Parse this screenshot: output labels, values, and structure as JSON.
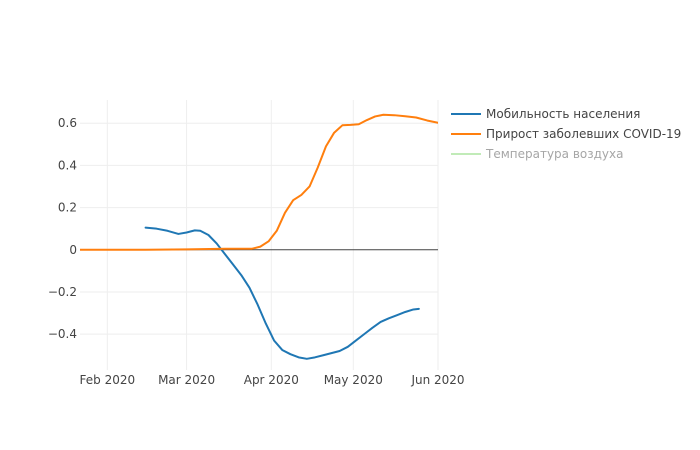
{
  "chart_data": {
    "type": "line",
    "title": "",
    "xlabel": "",
    "ylabel": "",
    "xlim": [
      "2020-01-22",
      "2020-06-01"
    ],
    "ylim": [
      -0.57,
      0.71
    ],
    "x_ticks": [
      {
        "date": "2020-02-01",
        "label": "Feb 2020"
      },
      {
        "date": "2020-03-01",
        "label": "Mar 2020"
      },
      {
        "date": "2020-04-01",
        "label": "Apr 2020"
      },
      {
        "date": "2020-05-01",
        "label": "May 2020"
      },
      {
        "date": "2020-06-01",
        "label": "Jun 2020"
      }
    ],
    "y_ticks": [
      {
        "value": 0.6,
        "label": "0.6"
      },
      {
        "value": 0.4,
        "label": "0.4"
      },
      {
        "value": 0.2,
        "label": "0.2"
      },
      {
        "value": 0,
        "label": "0"
      },
      {
        "value": -0.2,
        "label": "−0.2"
      },
      {
        "value": -0.4,
        "label": "−0.4"
      }
    ],
    "grid": true,
    "legend_position": "top-right",
    "series": [
      {
        "name": "Мобильность населения",
        "color": "#1f77b4",
        "visible": true,
        "points": [
          [
            "2020-02-15",
            0.105
          ],
          [
            "2020-02-19",
            0.1
          ],
          [
            "2020-02-23",
            0.09
          ],
          [
            "2020-02-27",
            0.075
          ],
          [
            "2020-03-01",
            0.082
          ],
          [
            "2020-03-04",
            0.092
          ],
          [
            "2020-03-06",
            0.09
          ],
          [
            "2020-03-09",
            0.07
          ],
          [
            "2020-03-12",
            0.03
          ],
          [
            "2020-03-15",
            -0.02
          ],
          [
            "2020-03-18",
            -0.07
          ],
          [
            "2020-03-21",
            -0.12
          ],
          [
            "2020-03-24",
            -0.18
          ],
          [
            "2020-03-27",
            -0.26
          ],
          [
            "2020-03-30",
            -0.35
          ],
          [
            "2020-04-02",
            -0.43
          ],
          [
            "2020-04-05",
            -0.475
          ],
          [
            "2020-04-08",
            -0.495
          ],
          [
            "2020-04-11",
            -0.51
          ],
          [
            "2020-04-14",
            -0.517
          ],
          [
            "2020-04-17",
            -0.51
          ],
          [
            "2020-04-20",
            -0.5
          ],
          [
            "2020-04-23",
            -0.49
          ],
          [
            "2020-04-26",
            -0.48
          ],
          [
            "2020-04-29",
            -0.46
          ],
          [
            "2020-05-02",
            -0.43
          ],
          [
            "2020-05-05",
            -0.4
          ],
          [
            "2020-05-08",
            -0.37
          ],
          [
            "2020-05-11",
            -0.342
          ],
          [
            "2020-05-14",
            -0.325
          ],
          [
            "2020-05-17",
            -0.31
          ],
          [
            "2020-05-20",
            -0.295
          ],
          [
            "2020-05-23",
            -0.283
          ],
          [
            "2020-05-25",
            -0.28
          ]
        ]
      },
      {
        "name": "Прирост заболевших COVID-19",
        "color": "#ff7f0e",
        "visible": true,
        "points": [
          [
            "2020-01-22",
            0.0
          ],
          [
            "2020-02-15",
            0.0
          ],
          [
            "2020-03-01",
            0.002
          ],
          [
            "2020-03-15",
            0.005
          ],
          [
            "2020-03-25",
            0.005
          ],
          [
            "2020-03-28",
            0.015
          ],
          [
            "2020-03-31",
            0.04
          ],
          [
            "2020-04-03",
            0.09
          ],
          [
            "2020-04-06",
            0.175
          ],
          [
            "2020-04-09",
            0.235
          ],
          [
            "2020-04-12",
            0.26
          ],
          [
            "2020-04-15",
            0.3
          ],
          [
            "2020-04-18",
            0.39
          ],
          [
            "2020-04-21",
            0.49
          ],
          [
            "2020-04-24",
            0.555
          ],
          [
            "2020-04-27",
            0.59
          ],
          [
            "2020-04-30",
            0.592
          ],
          [
            "2020-05-03",
            0.595
          ],
          [
            "2020-05-06",
            0.615
          ],
          [
            "2020-05-09",
            0.632
          ],
          [
            "2020-05-12",
            0.64
          ],
          [
            "2020-05-16",
            0.638
          ],
          [
            "2020-05-20",
            0.633
          ],
          [
            "2020-05-24",
            0.627
          ],
          [
            "2020-05-28",
            0.613
          ],
          [
            "2020-06-01",
            0.602
          ]
        ]
      },
      {
        "name": "Температура воздуха",
        "color": "#98df8a",
        "visible": false,
        "points": []
      }
    ]
  }
}
